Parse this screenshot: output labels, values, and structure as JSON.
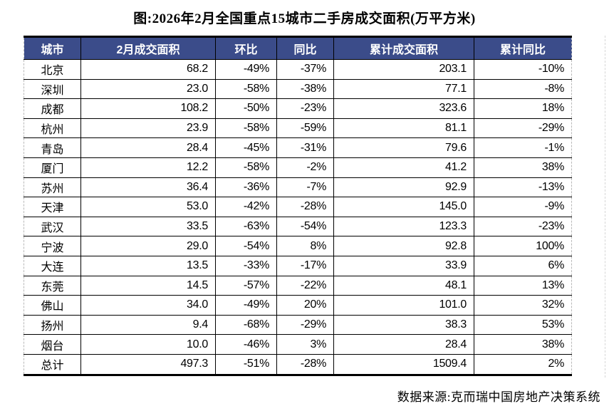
{
  "colors": {
    "header_bg": "#3B4C8A",
    "header_text": "#FFFFFF",
    "border": "#000000",
    "outer_dashed_border": "#B9B9B9"
  },
  "chart_data": {
    "type": "table",
    "title": "图:2026年2月全国重点15城市二手房成交面积(万平方米)",
    "source": "数据来源:克而瑞中国房地产决策系统",
    "columns": [
      "城市",
      "2月成交面积",
      "环比",
      "同比",
      "累计成交面积",
      "累计同比"
    ],
    "rows": [
      {
        "city": "北京",
        "feb_area": "68.2",
        "mom": "-49%",
        "yoy": "-37%",
        "cum_area": "203.1",
        "cum_yoy": "-10%"
      },
      {
        "city": "深圳",
        "feb_area": "23.0",
        "mom": "-58%",
        "yoy": "-38%",
        "cum_area": "77.1",
        "cum_yoy": "-8%"
      },
      {
        "city": "成都",
        "feb_area": "108.2",
        "mom": "-50%",
        "yoy": "-23%",
        "cum_area": "323.6",
        "cum_yoy": "18%"
      },
      {
        "city": "杭州",
        "feb_area": "23.9",
        "mom": "-58%",
        "yoy": "-59%",
        "cum_area": "81.1",
        "cum_yoy": "-29%"
      },
      {
        "city": "青岛",
        "feb_area": "28.4",
        "mom": "-45%",
        "yoy": "-31%",
        "cum_area": "79.6",
        "cum_yoy": "-1%"
      },
      {
        "city": "厦门",
        "feb_area": "12.2",
        "mom": "-58%",
        "yoy": "-2%",
        "cum_area": "41.2",
        "cum_yoy": "38%"
      },
      {
        "city": "苏州",
        "feb_area": "36.4",
        "mom": "-36%",
        "yoy": "-7%",
        "cum_area": "92.9",
        "cum_yoy": "-13%"
      },
      {
        "city": "天津",
        "feb_area": "53.0",
        "mom": "-42%",
        "yoy": "-28%",
        "cum_area": "145.0",
        "cum_yoy": "-9%"
      },
      {
        "city": "武汉",
        "feb_area": "33.5",
        "mom": "-63%",
        "yoy": "-54%",
        "cum_area": "123.3",
        "cum_yoy": "-23%"
      },
      {
        "city": "宁波",
        "feb_area": "29.0",
        "mom": "-54%",
        "yoy": "8%",
        "cum_area": "92.8",
        "cum_yoy": "100%"
      },
      {
        "city": "大连",
        "feb_area": "13.5",
        "mom": "-33%",
        "yoy": "-17%",
        "cum_area": "33.9",
        "cum_yoy": "6%"
      },
      {
        "city": "东莞",
        "feb_area": "14.5",
        "mom": "-57%",
        "yoy": "-22%",
        "cum_area": "48.1",
        "cum_yoy": "13%"
      },
      {
        "city": "佛山",
        "feb_area": "34.0",
        "mom": "-49%",
        "yoy": "20%",
        "cum_area": "101.0",
        "cum_yoy": "32%"
      },
      {
        "city": "扬州",
        "feb_area": "9.4",
        "mom": "-68%",
        "yoy": "-29%",
        "cum_area": "38.3",
        "cum_yoy": "53%"
      },
      {
        "city": "烟台",
        "feb_area": "10.0",
        "mom": "-46%",
        "yoy": "3%",
        "cum_area": "28.4",
        "cum_yoy": "38%"
      },
      {
        "city": "总计",
        "feb_area": "497.3",
        "mom": "-51%",
        "yoy": "-28%",
        "cum_area": "1509.4",
        "cum_yoy": "2%"
      }
    ]
  }
}
